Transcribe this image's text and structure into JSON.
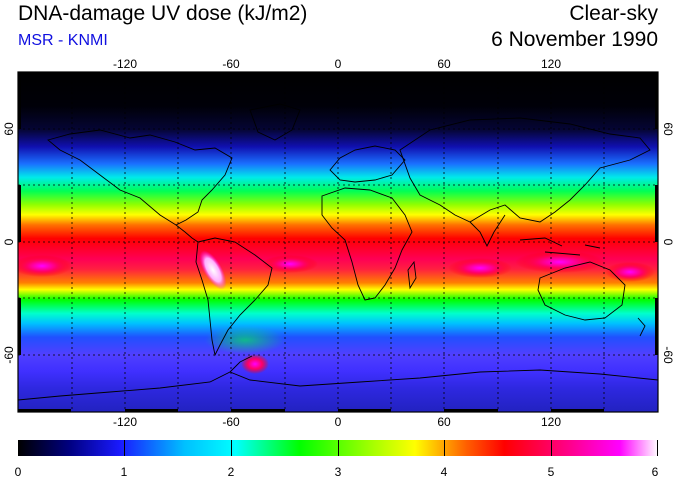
{
  "header": {
    "title": "DNA-damage UV dose (kJ/m2)",
    "subtitle": "MSR - KNMI",
    "sky_condition": "Clear-sky",
    "date": "6 November 1990"
  },
  "map": {
    "projection": "equirectangular",
    "lon_ticks": [
      "-120",
      "-60",
      "0",
      "60",
      "120"
    ],
    "lat_ticks_left": [
      "60",
      "0",
      "-60"
    ],
    "lat_ticks_right": [
      "60",
      "0",
      "-60"
    ],
    "gridlines": "dotted",
    "colorbar": {
      "min": 0,
      "max": 6,
      "tick_labels": [
        "0",
        "1",
        "2",
        "3",
        "4",
        "5",
        "6"
      ],
      "colors": [
        "#000000",
        "#1a1aff",
        "#00ffff",
        "#00ff00",
        "#ffff00",
        "#ff0000",
        "#ff00ff",
        "#ffffff"
      ]
    }
  }
}
